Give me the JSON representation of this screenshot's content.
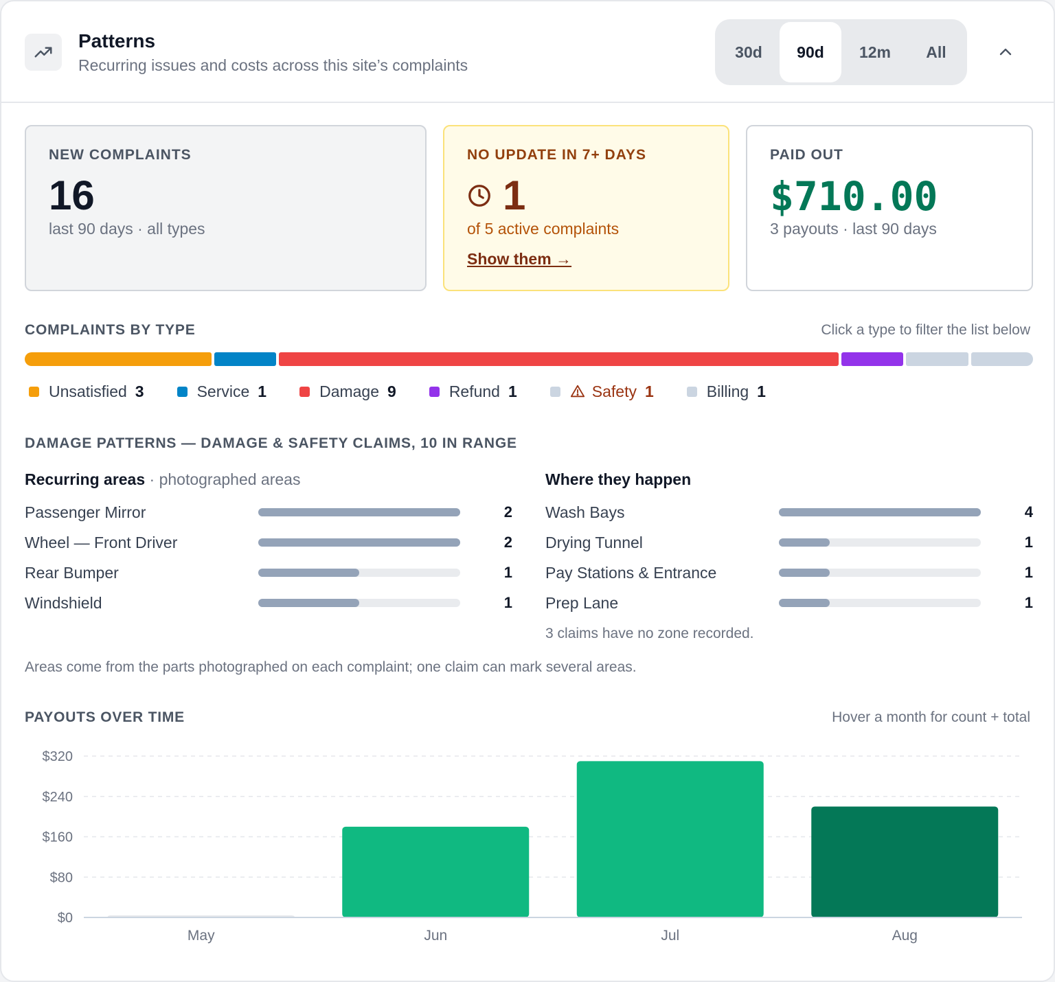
{
  "header": {
    "title": "Patterns",
    "subtitle": "Recurring issues and costs across this site’s complaints",
    "icon": "trending-up-icon",
    "ranges": [
      {
        "label": "30d",
        "active": false
      },
      {
        "label": "90d",
        "active": true
      },
      {
        "label": "12m",
        "active": false
      },
      {
        "label": "All",
        "active": false
      }
    ],
    "collapse_icon": "chevron-up-icon"
  },
  "stats": {
    "new": {
      "label": "NEW COMPLAINTS",
      "value": "16",
      "sub": "last 90 days · all types"
    },
    "stale": {
      "label": "NO UPDATE IN 7+ DAYS",
      "value": "1",
      "sub": "of 5 active complaints",
      "link": "Show them →",
      "icon": "clock-icon"
    },
    "paid": {
      "label": "PAID OUT",
      "value": "$710.00",
      "sub": "3 payouts · last 90 days"
    }
  },
  "types": {
    "heading": "COMPLAINTS BY TYPE",
    "hint": "Click a type to filter the list below",
    "items": [
      {
        "name": "Unsatisfied",
        "count": "3",
        "color": "#f59e0b",
        "value": 3
      },
      {
        "name": "Service",
        "count": "1",
        "color": "#0284c7",
        "value": 1
      },
      {
        "name": "Damage",
        "count": "9",
        "color": "#ef4444",
        "value": 9
      },
      {
        "name": "Refund",
        "count": "1",
        "color": "#9333ea",
        "value": 1
      },
      {
        "name": "Safety",
        "count": "1",
        "color": "#cbd5e1",
        "value": 1,
        "warning": true,
        "icon": "warning-icon"
      },
      {
        "name": "Billing",
        "count": "1",
        "color": "#cbd5e1",
        "value": 1
      }
    ]
  },
  "damage": {
    "heading": "DAMAGE PATTERNS — DAMAGE & SAFETY CLAIMS, 10 IN RANGE",
    "areas": {
      "title": "Recurring areas",
      "subtitle": "· photographed areas",
      "max": 2,
      "rows": [
        {
          "label": "Passenger Mirror",
          "value": 2
        },
        {
          "label": "Wheel — Front Driver",
          "value": 2
        },
        {
          "label": "Rear Bumper",
          "value": 1
        },
        {
          "label": "Windshield",
          "value": 1
        }
      ]
    },
    "zones": {
      "title": "Where they happen",
      "max": 4,
      "rows": [
        {
          "label": "Wash Bays",
          "value": 4
        },
        {
          "label": "Drying Tunnel",
          "value": 1
        },
        {
          "label": "Pay Stations & Entrance",
          "value": 1
        },
        {
          "label": "Prep Lane",
          "value": 1
        }
      ],
      "note": "3 claims have no zone recorded."
    },
    "footnote": "Areas come from the parts photographed on each complaint; one claim can mark several areas."
  },
  "payouts": {
    "heading": "PAYOUTS OVER TIME",
    "hint": "Hover a month for count + total"
  },
  "chart_data": {
    "type": "bar",
    "categories": [
      "May",
      "Jun",
      "Jul",
      "Aug"
    ],
    "values": [
      0,
      180,
      310,
      220
    ],
    "ylim": [
      0,
      320
    ],
    "yticks": [
      "$0",
      "$80",
      "$160",
      "$240",
      "$320"
    ],
    "ytick_values": [
      0,
      80,
      160,
      240,
      320
    ],
    "colors": [
      "#e5e7eb",
      "#10b981",
      "#10b981",
      "#047857"
    ],
    "grid": true
  }
}
